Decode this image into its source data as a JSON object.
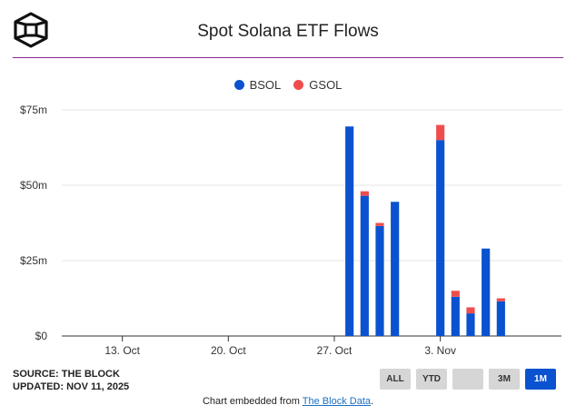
{
  "header": {
    "title": "Spot Solana ETF Flows",
    "logo_icon": "the-block-cube-icon"
  },
  "colors": {
    "BSOL": "#0a52cf",
    "GSOL": "#ef4d4d",
    "accent": "#8b2b8f"
  },
  "chart_data": {
    "type": "bar",
    "stacked": true,
    "title": "Spot Solana ETF Flows",
    "legend_position": "top-center",
    "grid": true,
    "ylim": [
      0,
      75
    ],
    "y_ticks": [
      {
        "value": 0,
        "label": "$0"
      },
      {
        "value": 25,
        "label": "$25m"
      },
      {
        "value": 50,
        "label": "$50m"
      },
      {
        "value": 75,
        "label": "$75m"
      }
    ],
    "x_range": [
      "2025-10-09",
      "2025-11-11"
    ],
    "x_ticks": [
      {
        "date": "2025-10-13",
        "label": "13. Oct"
      },
      {
        "date": "2025-10-20",
        "label": "20. Oct"
      },
      {
        "date": "2025-10-27",
        "label": "27. Oct"
      },
      {
        "date": "2025-11-03",
        "label": "3. Nov"
      }
    ],
    "dates": [
      "2025-10-28",
      "2025-10-29",
      "2025-10-30",
      "2025-10-31",
      "2025-11-03",
      "2025-11-04",
      "2025-11-05",
      "2025-11-06",
      "2025-11-07"
    ],
    "series": [
      {
        "name": "BSOL",
        "color": "#0a52cf",
        "values": [
          69.5,
          46.5,
          36.5,
          44.5,
          65.0,
          13.0,
          7.5,
          29.0,
          11.5
        ]
      },
      {
        "name": "GSOL",
        "color": "#ef4d4d",
        "values": [
          0,
          1.5,
          1.0,
          0,
          5.0,
          2.0,
          2.0,
          0,
          1.0
        ]
      }
    ]
  },
  "footer": {
    "source": "SOURCE: THE BLOCK",
    "updated": "UPDATED: NOV 11, 2025",
    "buttons": [
      {
        "label": "ALL",
        "active": false
      },
      {
        "label": "YTD",
        "active": false
      },
      {
        "label": "",
        "active": false
      },
      {
        "label": "3M",
        "active": false
      },
      {
        "label": "1M",
        "active": true
      }
    ],
    "embed_prefix": "Chart embedded from",
    "embed_link": "The Block Data",
    "embed_suffix": "."
  }
}
